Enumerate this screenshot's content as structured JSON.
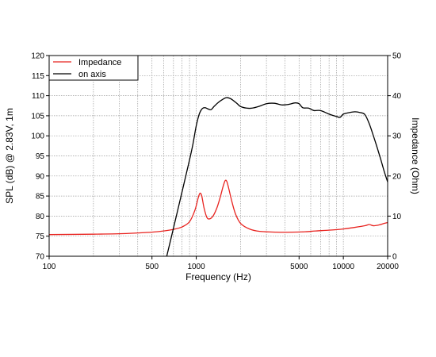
{
  "chart_data": {
    "type": "line",
    "xlabel": "Frequency (Hz)",
    "ylabel_left": "SPL (dB) @ 2.83V, 1m",
    "ylabel_right": "Impedance (Ohm)",
    "x_scale": "log",
    "xlim": [
      100,
      20000
    ],
    "ylim_left": [
      70,
      120
    ],
    "ylim_right": [
      0,
      50
    ],
    "x_ticks": [
      {
        "value": 100,
        "label": "100"
      },
      {
        "value": 500,
        "label": "500"
      },
      {
        "value": 1000,
        "label": "1000"
      },
      {
        "value": 5000,
        "label": "5000"
      },
      {
        "value": 10000,
        "label": "10000"
      },
      {
        "value": 20000,
        "label": "20000"
      }
    ],
    "y_ticks_left": [
      "70",
      "75",
      "80",
      "85",
      "90",
      "95",
      "100",
      "105",
      "110",
      "115",
      "120"
    ],
    "y_ticks_right": [
      "0",
      "10",
      "20",
      "30",
      "40",
      "50"
    ],
    "grid": true,
    "legend_position": "top-left",
    "series": [
      {
        "name": "Impedance",
        "axis": "right",
        "color": "#e8231f",
        "points": [
          [
            100,
            5.4
          ],
          [
            200,
            5.5
          ],
          [
            300,
            5.6
          ],
          [
            400,
            5.8
          ],
          [
            500,
            6.0
          ],
          [
            600,
            6.3
          ],
          [
            700,
            6.7
          ],
          [
            800,
            7.3
          ],
          [
            900,
            8.6
          ],
          [
            980,
            11.5
          ],
          [
            1030,
            14.5
          ],
          [
            1060,
            15.7
          ],
          [
            1090,
            15.0
          ],
          [
            1130,
            12.0
          ],
          [
            1180,
            9.7
          ],
          [
            1230,
            9.3
          ],
          [
            1300,
            10.0
          ],
          [
            1380,
            12.0
          ],
          [
            1450,
            14.5
          ],
          [
            1520,
            17.3
          ],
          [
            1570,
            18.8
          ],
          [
            1610,
            18.7
          ],
          [
            1660,
            17.0
          ],
          [
            1750,
            13.5
          ],
          [
            1850,
            10.5
          ],
          [
            2000,
            8.2
          ],
          [
            2300,
            6.8
          ],
          [
            2700,
            6.2
          ],
          [
            3500,
            6.0
          ],
          [
            4500,
            6.0
          ],
          [
            5500,
            6.1
          ],
          [
            6500,
            6.3
          ],
          [
            8000,
            6.5
          ],
          [
            10000,
            6.8
          ],
          [
            12000,
            7.2
          ],
          [
            14000,
            7.6
          ],
          [
            15000,
            7.9
          ],
          [
            16000,
            7.6
          ],
          [
            17500,
            7.8
          ],
          [
            19000,
            8.2
          ],
          [
            20000,
            8.4
          ]
        ]
      },
      {
        "name": "on axis",
        "axis": "left",
        "color": "#000000",
        "points": [
          [
            630,
            70
          ],
          [
            700,
            77
          ],
          [
            800,
            86
          ],
          [
            900,
            94
          ],
          [
            950,
            98
          ],
          [
            1000,
            102.5
          ],
          [
            1050,
            105.5
          ],
          [
            1100,
            106.8
          ],
          [
            1150,
            107
          ],
          [
            1200,
            106.7
          ],
          [
            1260,
            106.5
          ],
          [
            1320,
            107.3
          ],
          [
            1400,
            108.2
          ],
          [
            1500,
            109.0
          ],
          [
            1600,
            109.5
          ],
          [
            1700,
            109.3
          ],
          [
            1800,
            108.7
          ],
          [
            1900,
            108.0
          ],
          [
            2000,
            107.3
          ],
          [
            2200,
            106.9
          ],
          [
            2400,
            106.9
          ],
          [
            2700,
            107.4
          ],
          [
            3000,
            108.0
          ],
          [
            3400,
            108.1
          ],
          [
            3800,
            107.7
          ],
          [
            4200,
            107.8
          ],
          [
            4700,
            108.2
          ],
          [
            5000,
            108.0
          ],
          [
            5300,
            107.0
          ],
          [
            5800,
            106.9
          ],
          [
            6300,
            106.3
          ],
          [
            7000,
            106.3
          ],
          [
            8000,
            105.4
          ],
          [
            9000,
            104.8
          ],
          [
            9500,
            104.6
          ],
          [
            10000,
            105.4
          ],
          [
            11000,
            105.8
          ],
          [
            12000,
            106.0
          ],
          [
            13000,
            105.8
          ],
          [
            14000,
            105.3
          ],
          [
            15000,
            103.0
          ],
          [
            16000,
            100.0
          ],
          [
            17000,
            97.0
          ],
          [
            18000,
            94.0
          ],
          [
            19000,
            91.0
          ],
          [
            20000,
            88.5
          ]
        ]
      }
    ]
  }
}
